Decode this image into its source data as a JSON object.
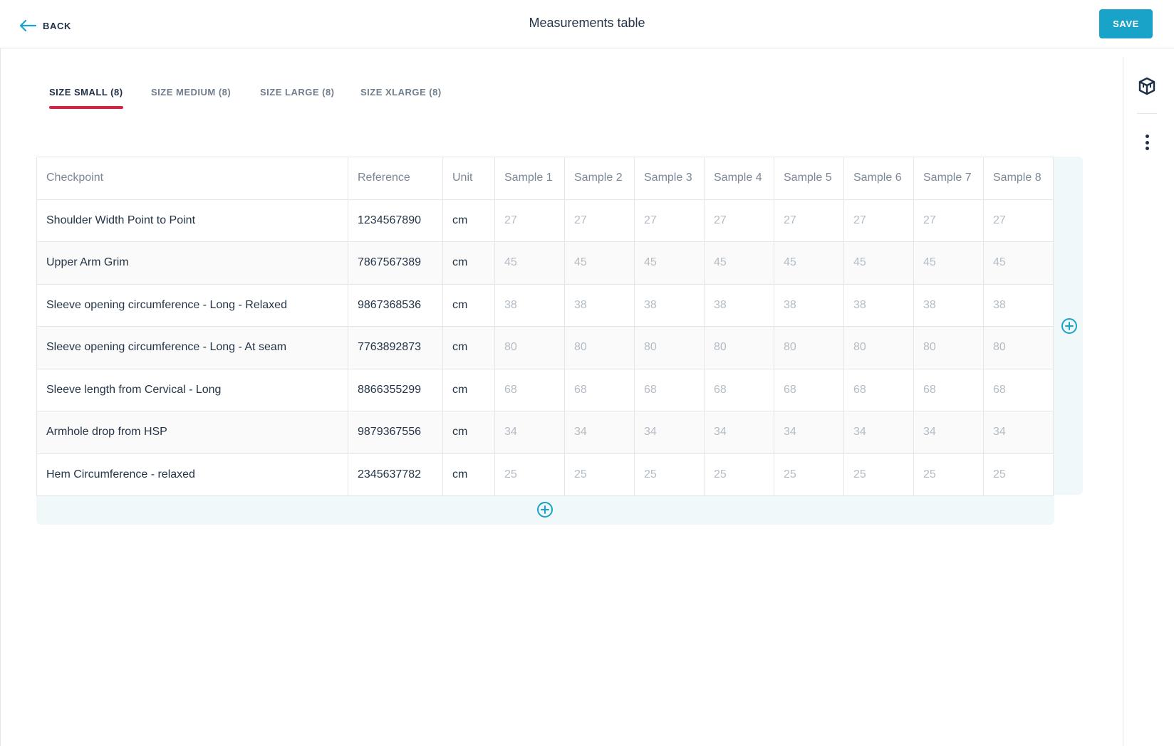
{
  "header": {
    "back_label": "BACK",
    "title": "Measurements table",
    "save_label": "SAVE"
  },
  "colors": {
    "accent": "#1aa3c9",
    "tab_underline": "#e11d3f",
    "panel_bg": "#f1f8fa"
  },
  "tabs": [
    {
      "label": "SIZE SMALL (8)",
      "active": true
    },
    {
      "label": "SIZE MEDIUM (8)",
      "active": false
    },
    {
      "label": "SIZE LARGE (8)",
      "active": false
    },
    {
      "label": "SIZE XLARGE (8)",
      "active": false
    }
  ],
  "table": {
    "headers": [
      "Checkpoint",
      "Reference",
      "Unit",
      "Sample 1",
      "Sample 2",
      "Sample 3",
      "Sample 4",
      "Sample 5",
      "Sample 6",
      "Sample 7",
      "Sample 8"
    ],
    "rows": [
      {
        "checkpoint": "Shoulder Width Point to Point",
        "reference": "1234567890",
        "unit": "cm",
        "samples": [
          "27",
          "27",
          "27",
          "27",
          "27",
          "27",
          "27",
          "27"
        ]
      },
      {
        "checkpoint": "Upper Arm Grim",
        "reference": "7867567389",
        "unit": "cm",
        "samples": [
          "45",
          "45",
          "45",
          "45",
          "45",
          "45",
          "45",
          "45"
        ]
      },
      {
        "checkpoint": "Sleeve opening circumference - Long - Relaxed",
        "reference": "9867368536",
        "unit": "cm",
        "samples": [
          "38",
          "38",
          "38",
          "38",
          "38",
          "38",
          "38",
          "38"
        ]
      },
      {
        "checkpoint": "Sleeve opening circumference - Long - At seam",
        "reference": "7763892873",
        "unit": "cm",
        "samples": [
          "80",
          "80",
          "80",
          "80",
          "80",
          "80",
          "80",
          "80"
        ]
      },
      {
        "checkpoint": "Sleeve length from Cervical - Long",
        "reference": "8866355299",
        "unit": "cm",
        "samples": [
          "68",
          "68",
          "68",
          "68",
          "68",
          "68",
          "68",
          "68"
        ]
      },
      {
        "checkpoint": "Armhole drop from HSP",
        "reference": "9879367556",
        "unit": "cm",
        "samples": [
          "34",
          "34",
          "34",
          "34",
          "34",
          "34",
          "34",
          "34"
        ]
      },
      {
        "checkpoint": "Hem Circumference - relaxed",
        "reference": "2345637782",
        "unit": "cm",
        "samples": [
          "25",
          "25",
          "25",
          "25",
          "25",
          "25",
          "25",
          "25"
        ]
      }
    ]
  },
  "icons": {
    "back": "arrow-left-icon",
    "rail_top": "cube-icon",
    "rail_menu": "kebab-menu-icon",
    "add": "plus-circle-icon"
  }
}
